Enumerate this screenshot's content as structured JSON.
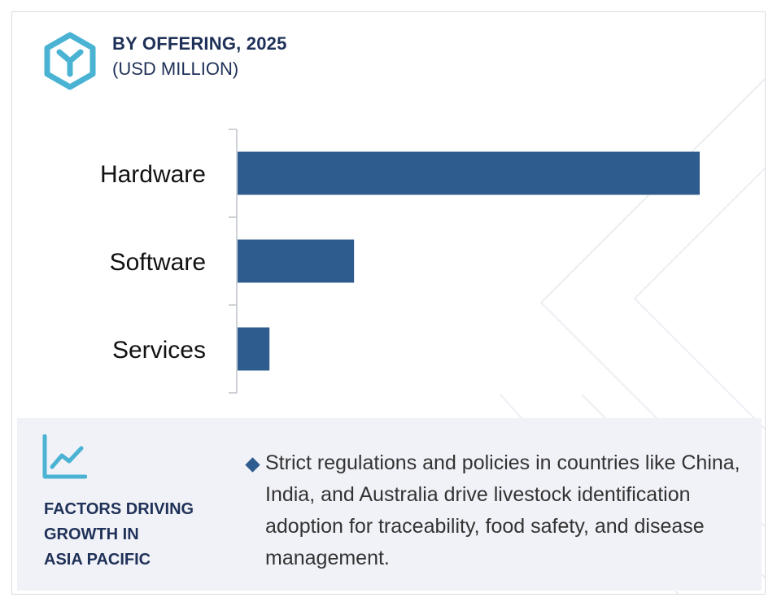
{
  "header": {
    "title": "BY OFFERING, 2025",
    "subtitle": "(USD MILLION)"
  },
  "colors": {
    "bar": "#2e5c8e",
    "heading": "#1f3158",
    "panel": "#f1f2f7",
    "logo": "#4ab3d3"
  },
  "icons": {
    "logo": "hexagon-logo-icon",
    "factors": "trend-line-chart-icon",
    "bullet": "diamond-bullet-icon"
  },
  "chart_data": {
    "type": "bar",
    "orientation": "horizontal",
    "categories": [
      "Hardware",
      "Software",
      "Services"
    ],
    "values": [
      100,
      25.2,
      6.9
    ],
    "xlim": [
      0,
      100
    ],
    "grid": false,
    "legend": "none"
  },
  "factors": {
    "title_lines": [
      "FACTORS DRIVING",
      "GROWTH IN",
      "ASIA PACIFIC"
    ],
    "bullet": "Strict regulations and policies in countries like China, India, and Australia drive livestock identification adoption for traceability, food safety, and disease management."
  }
}
